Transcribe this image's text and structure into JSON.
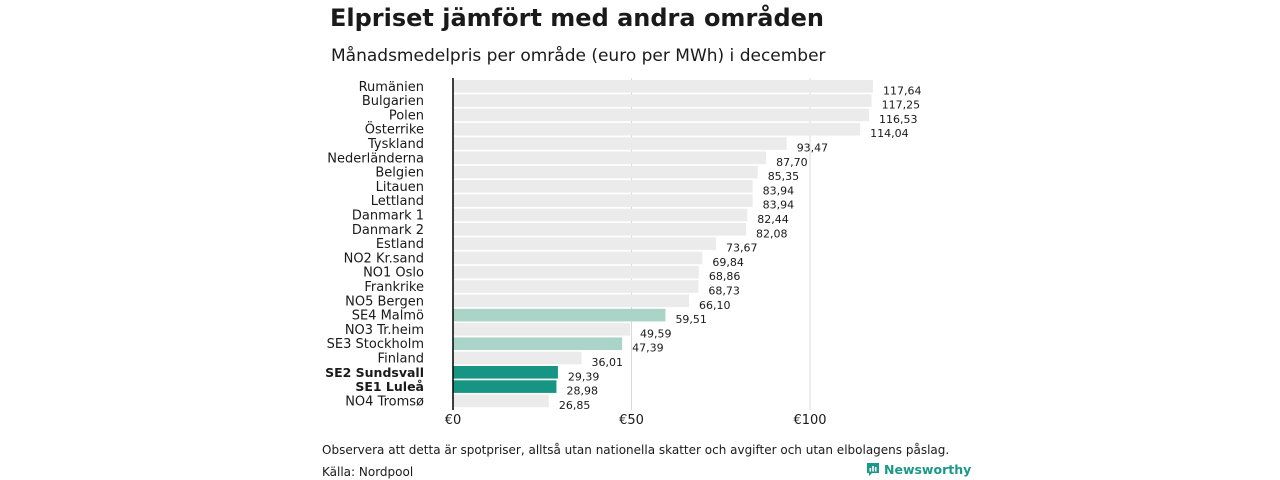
{
  "title": "Elpriset jämfört med andra områden",
  "subtitle": "Månadsmedelpris per område (euro per MWh) i december",
  "note": "Observera att detta är spotpriser, alltså utan nationella skatter och avgifter och utan elbolagens påslag.",
  "source": "Källa: Nordpool",
  "brand": "Newsworthy",
  "icon": "newsworthy-logo-icon",
  "colors": {
    "default_bar": "#ebebeb",
    "light_highlight": "#a9d4c7",
    "strong_highlight": "#169584",
    "grid": "#d9d9d9",
    "axis": "#000000",
    "brand": "#1a9a86"
  },
  "chart_data": {
    "type": "bar",
    "orientation": "horizontal",
    "title": "Elpriset jämfört med andra områden",
    "subtitle": "Månadsmedelpris per område (euro per MWh) i december",
    "xlabel": "",
    "ylabel": "",
    "xlim": [
      0,
      120
    ],
    "xticks": [
      0,
      50,
      100
    ],
    "xtick_labels": [
      "€0",
      "€50",
      "€100"
    ],
    "grid": true,
    "categories": [
      "Rumänien",
      "Bulgarien",
      "Polen",
      "Österrike",
      "Tyskland",
      "Nederländerna",
      "Belgien",
      "Litauen",
      "Lettland",
      "Danmark  1",
      "Danmark  2",
      "Estland",
      "NO2 Kr.sand",
      "NO1 Oslo",
      "Frankrike",
      "NO5 Bergen",
      "SE4  Malmö",
      "NO3 Tr.heim",
      "SE3  Stockholm",
      "Finland",
      "SE2 Sundsvall",
      "SE1 Luleå",
      "NO4 Tromsø"
    ],
    "values": [
      117.64,
      117.25,
      116.53,
      114.04,
      93.47,
      87.7,
      85.35,
      83.94,
      83.94,
      82.44,
      82.08,
      73.67,
      69.84,
      68.86,
      68.73,
      66.1,
      59.51,
      49.59,
      47.39,
      36.01,
      29.39,
      28.98,
      26.85
    ],
    "value_labels": [
      "117,64",
      "117,25",
      "116,53",
      "114,04",
      "93,47",
      "87,70",
      "85,35",
      "83,94",
      "83,94",
      "82,44",
      "82,08",
      "73,67",
      "69,84",
      "68,86",
      "68,73",
      "66,10",
      "59,51",
      "49,59",
      "47,39",
      "36,01",
      "29,39",
      "28,98",
      "26,85"
    ],
    "highlight": [
      "none",
      "none",
      "none",
      "none",
      "none",
      "none",
      "none",
      "none",
      "none",
      "none",
      "none",
      "none",
      "none",
      "none",
      "none",
      "none",
      "light",
      "none",
      "light",
      "none",
      "strong",
      "strong",
      "none"
    ]
  }
}
